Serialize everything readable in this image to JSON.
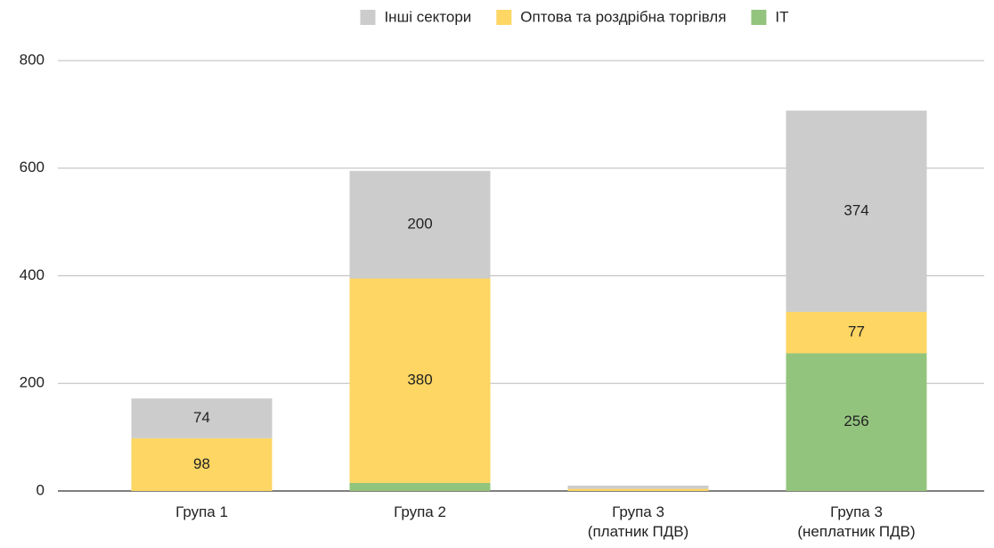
{
  "chart_data": {
    "type": "stacked_bar",
    "categories": [
      [
        "Група 1"
      ],
      [
        "Група 2"
      ],
      [
        "Група 3",
        "(платник ПДВ)"
      ],
      [
        "Група 3",
        "(неплатник ПДВ)"
      ]
    ],
    "series": [
      {
        "name": "IT",
        "color": "#93c47d",
        "values": [
          0,
          15,
          0,
          256
        ]
      },
      {
        "name": "Оптова та роздрібна торгівля",
        "color": "#fdd663",
        "values": [
          98,
          380,
          4,
          77
        ]
      },
      {
        "name": "Інші сектори",
        "color": "#cccccc",
        "values": [
          74,
          200,
          6,
          374
        ]
      }
    ],
    "legend_order": [
      2,
      1,
      0
    ],
    "legend": "top",
    "ylim": [
      0,
      800
    ],
    "yticks": [
      0,
      200,
      400,
      600,
      800
    ],
    "grid": true
  }
}
